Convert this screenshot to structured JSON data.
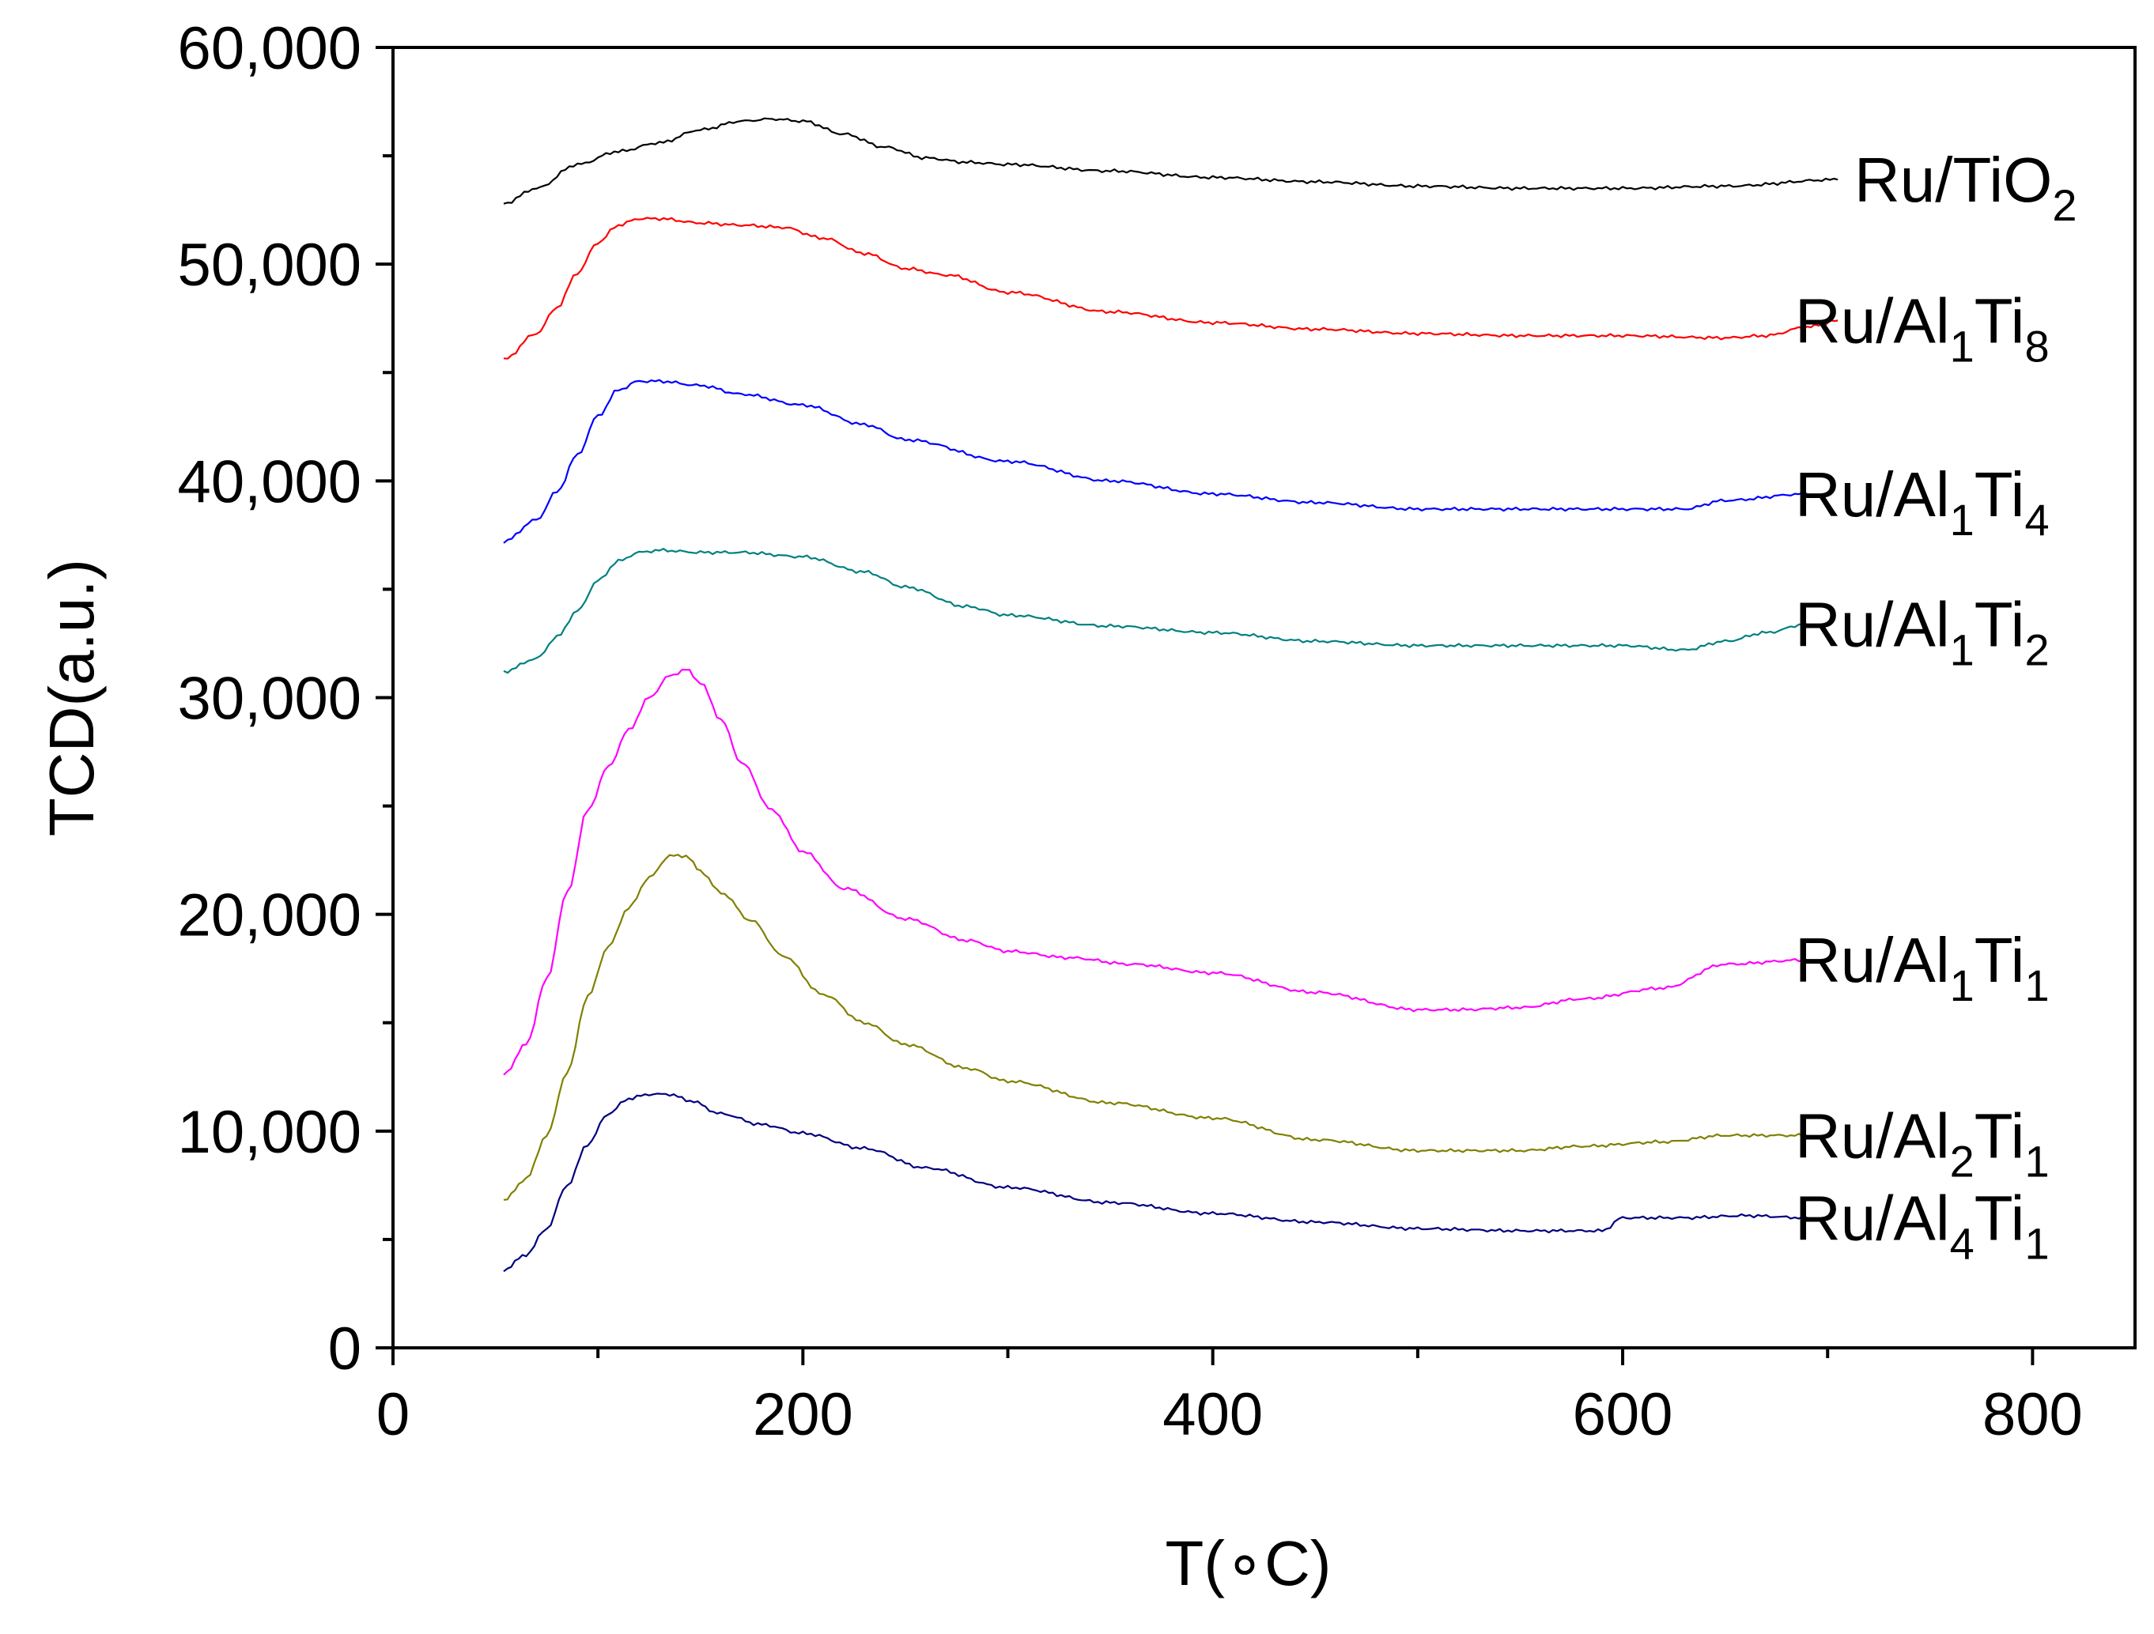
{
  "chart_data": {
    "type": "line",
    "title": "",
    "xlabel": "T(∘C)",
    "ylabel": "TCD(a.u.)",
    "xlim": [
      0,
      850
    ],
    "ylim": [
      0,
      60000
    ],
    "x_ticks": [
      0,
      200,
      400,
      600,
      800
    ],
    "x_tick_labels": [
      "0",
      "200",
      "400",
      "600",
      "800"
    ],
    "y_ticks": [
      0,
      10000,
      20000,
      30000,
      40000,
      50000,
      60000
    ],
    "y_tick_labels": [
      "0",
      "10,000",
      "20,000",
      "30,000",
      "40,000",
      "50,000",
      "60,000"
    ],
    "grid": false,
    "series": [
      {
        "name": "Ru/TiO2",
        "label": {
          "base": "Ru/TiO",
          "sub": "2"
        },
        "color": "#000000",
        "x": [
          54,
          70,
          90,
          110,
          130,
          150,
          170,
          185,
          200,
          220,
          240,
          260,
          280,
          300,
          350,
          400,
          450,
          500,
          550,
          600,
          650,
          705
        ],
        "y": [
          52800,
          53500,
          54600,
          55200,
          55600,
          56200,
          56600,
          56700,
          56600,
          56000,
          55400,
          54900,
          54700,
          54600,
          54300,
          54000,
          53800,
          53600,
          53500,
          53500,
          53600,
          53900
        ]
      },
      {
        "name": "Ru/Al1Ti8",
        "label": {
          "base": "Ru/Al",
          "sub": "1",
          "mid": "Ti",
          "sub2": "8"
        },
        "color": "#ff0000",
        "x": [
          54,
          70,
          80,
          90,
          100,
          110,
          120,
          130,
          150,
          170,
          190,
          210,
          230,
          250,
          270,
          300,
          350,
          400,
          450,
          500,
          550,
          600,
          650,
          670,
          690,
          705
        ],
        "y": [
          45600,
          46800,
          48000,
          49600,
          51000,
          51800,
          52100,
          52100,
          51900,
          51800,
          51700,
          51200,
          50500,
          49800,
          49500,
          48700,
          47800,
          47300,
          47000,
          46800,
          46700,
          46700,
          46600,
          46700,
          47100,
          47400
        ]
      },
      {
        "name": "Ru/Al1Ti4",
        "label": {
          "base": "Ru/Al",
          "sub": "1",
          "mid": "Ti",
          "sub2": "4"
        },
        "color": "#0000ff",
        "x": [
          54,
          70,
          80,
          90,
          100,
          110,
          120,
          130,
          150,
          170,
          200,
          230,
          250,
          300,
          350,
          400,
          450,
          500,
          550,
          600,
          630,
          650,
          690
        ],
        "y": [
          37200,
          38200,
          39500,
          41200,
          43000,
          44200,
          44600,
          44600,
          44400,
          44000,
          43500,
          42600,
          41900,
          40900,
          40000,
          39400,
          39000,
          38700,
          38700,
          38700,
          38700,
          39100,
          39400
        ]
      },
      {
        "name": "Ru/Al1Ti2",
        "label": {
          "base": "Ru/Al",
          "sub": "1",
          "mid": "Ti",
          "sub2": "2"
        },
        "color": "#008080",
        "x": [
          54,
          70,
          80,
          90,
          100,
          110,
          120,
          130,
          150,
          170,
          200,
          230,
          250,
          280,
          300,
          350,
          400,
          450,
          500,
          550,
          600,
          630,
          650,
          670,
          690
        ],
        "y": [
          31200,
          31800,
          32800,
          34000,
          35400,
          36300,
          36700,
          36800,
          36700,
          36700,
          36500,
          35800,
          35100,
          34200,
          33800,
          33300,
          33000,
          32600,
          32400,
          32400,
          32400,
          32200,
          32600,
          33000,
          33400
        ]
      },
      {
        "name": "Ru/Al1Ti1",
        "label": {
          "base": "Ru/Al",
          "sub": "1",
          "mid": "Ti",
          "sub2": "1"
        },
        "color": "#ff00ff",
        "x": [
          54,
          65,
          75,
          85,
          95,
          105,
          115,
          125,
          135,
          143,
          150,
          160,
          170,
          185,
          200,
          220,
          250,
          280,
          300,
          330,
          360,
          400,
          450,
          500,
          520,
          550,
          580,
          620,
          650,
          690
        ],
        "y": [
          12600,
          14000,
          17000,
          21000,
          24800,
          26800,
          28500,
          30000,
          31000,
          31300,
          30700,
          29000,
          27000,
          24800,
          22900,
          21200,
          19800,
          18800,
          18300,
          18000,
          17700,
          17300,
          16400,
          15600,
          15600,
          15700,
          16100,
          16600,
          17700,
          17900
        ]
      },
      {
        "name": "Ru/Al2Ti1",
        "label": {
          "base": "Ru/Al",
          "sub": "2",
          "mid": "Ti",
          "sub2": "1"
        },
        "color": "#808000",
        "x": [
          54,
          65,
          75,
          85,
          95,
          105,
          115,
          125,
          135,
          143,
          150,
          160,
          175,
          190,
          210,
          230,
          250,
          280,
          300,
          350,
          400,
          450,
          500,
          550,
          580,
          620,
          650,
          690
        ],
        "y": [
          6800,
          7800,
          9800,
          12700,
          16200,
          18500,
          20300,
          21700,
          22700,
          22700,
          22000,
          21000,
          19700,
          18100,
          16300,
          15000,
          14000,
          12900,
          12300,
          11300,
          10600,
          9600,
          9100,
          9100,
          9300,
          9500,
          9800,
          9800
        ]
      },
      {
        "name": "Ru/Al4Ti1",
        "label": {
          "base": "Ru/Al",
          "sub": "4",
          "mid": "Ti",
          "sub2": "1"
        },
        "color": "#000080",
        "x": [
          54,
          65,
          75,
          85,
          95,
          105,
          115,
          125,
          135,
          145,
          160,
          180,
          200,
          230,
          260,
          300,
          350,
          400,
          450,
          500,
          550,
          590,
          600,
          630,
          660,
          690
        ],
        "y": [
          3600,
          4300,
          5500,
          7500,
          9400,
          10800,
          11500,
          11700,
          11700,
          11400,
          10800,
          10300,
          9900,
          9200,
          8300,
          7400,
          6700,
          6200,
          5800,
          5500,
          5400,
          5400,
          6000,
          6000,
          6100,
          6000
        ]
      }
    ]
  }
}
